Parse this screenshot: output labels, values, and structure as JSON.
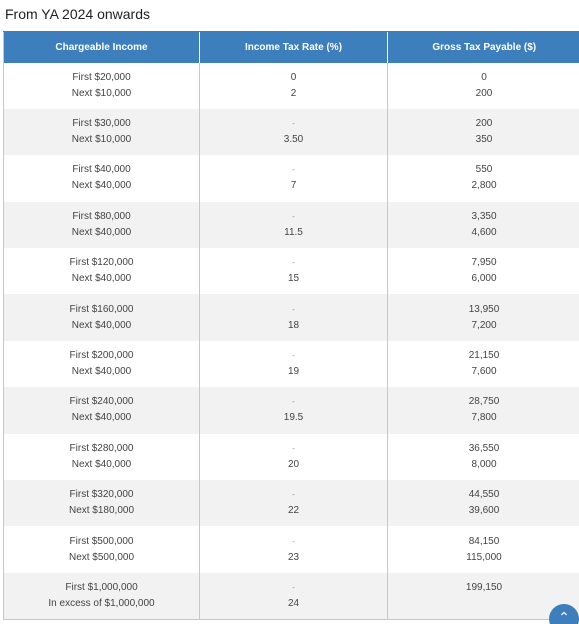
{
  "heading": "From YA 2024 onwards",
  "table": {
    "headers": [
      "Chargeable Income",
      "Income Tax Rate (%)",
      "Gross Tax Payable ($)"
    ],
    "rows": [
      {
        "income": [
          "First $20,000",
          "Next $10,000"
        ],
        "rate": [
          "0",
          "2"
        ],
        "tax": [
          "0",
          "200"
        ]
      },
      {
        "income": [
          "First $30,000",
          "Next $10,000"
        ],
        "rate": [
          "-",
          "3.50"
        ],
        "tax": [
          "200",
          "350"
        ]
      },
      {
        "income": [
          "First $40,000",
          "Next $40,000"
        ],
        "rate": [
          "-",
          "7"
        ],
        "tax": [
          "550",
          "2,800"
        ]
      },
      {
        "income": [
          "First $80,000",
          "Next $40,000"
        ],
        "rate": [
          "-",
          "11.5"
        ],
        "tax": [
          "3,350",
          "4,600"
        ]
      },
      {
        "income": [
          "First $120,000",
          "Next $40,000"
        ],
        "rate": [
          "-",
          "15"
        ],
        "tax": [
          "7,950",
          "6,000"
        ]
      },
      {
        "income": [
          "First $160,000",
          "Next $40,000"
        ],
        "rate": [
          "-",
          "18"
        ],
        "tax": [
          "13,950",
          "7,200"
        ]
      },
      {
        "income": [
          "First $200,000",
          "Next $40,000"
        ],
        "rate": [
          "-",
          "19"
        ],
        "tax": [
          "21,150",
          "7,600"
        ]
      },
      {
        "income": [
          "First $240,000",
          "Next $40,000"
        ],
        "rate": [
          "-",
          "19.5"
        ],
        "tax": [
          "28,750",
          "7,800"
        ]
      },
      {
        "income": [
          "First $280,000",
          "Next $40,000"
        ],
        "rate": [
          "-",
          "20"
        ],
        "tax": [
          "36,550",
          "8,000"
        ]
      },
      {
        "income": [
          "First $320,000",
          "Next $180,000"
        ],
        "rate": [
          "-",
          "22"
        ],
        "tax": [
          "44,550",
          "39,600"
        ]
      },
      {
        "income": [
          "First $500,000",
          "Next $500,000"
        ],
        "rate": [
          "-",
          "23"
        ],
        "tax": [
          "84,150",
          "115,000"
        ]
      },
      {
        "income": [
          "First $1,000,000",
          "In excess of $1,000,000"
        ],
        "rate": [
          "-",
          "24"
        ],
        "tax": [
          "199,150",
          ""
        ]
      }
    ]
  },
  "scroll_top": {
    "icon": "chevron-up-icon",
    "glyph": "⌃"
  },
  "colors": {
    "header_bg": "#3d7ebd",
    "alt_row": "#f2f2f2"
  }
}
